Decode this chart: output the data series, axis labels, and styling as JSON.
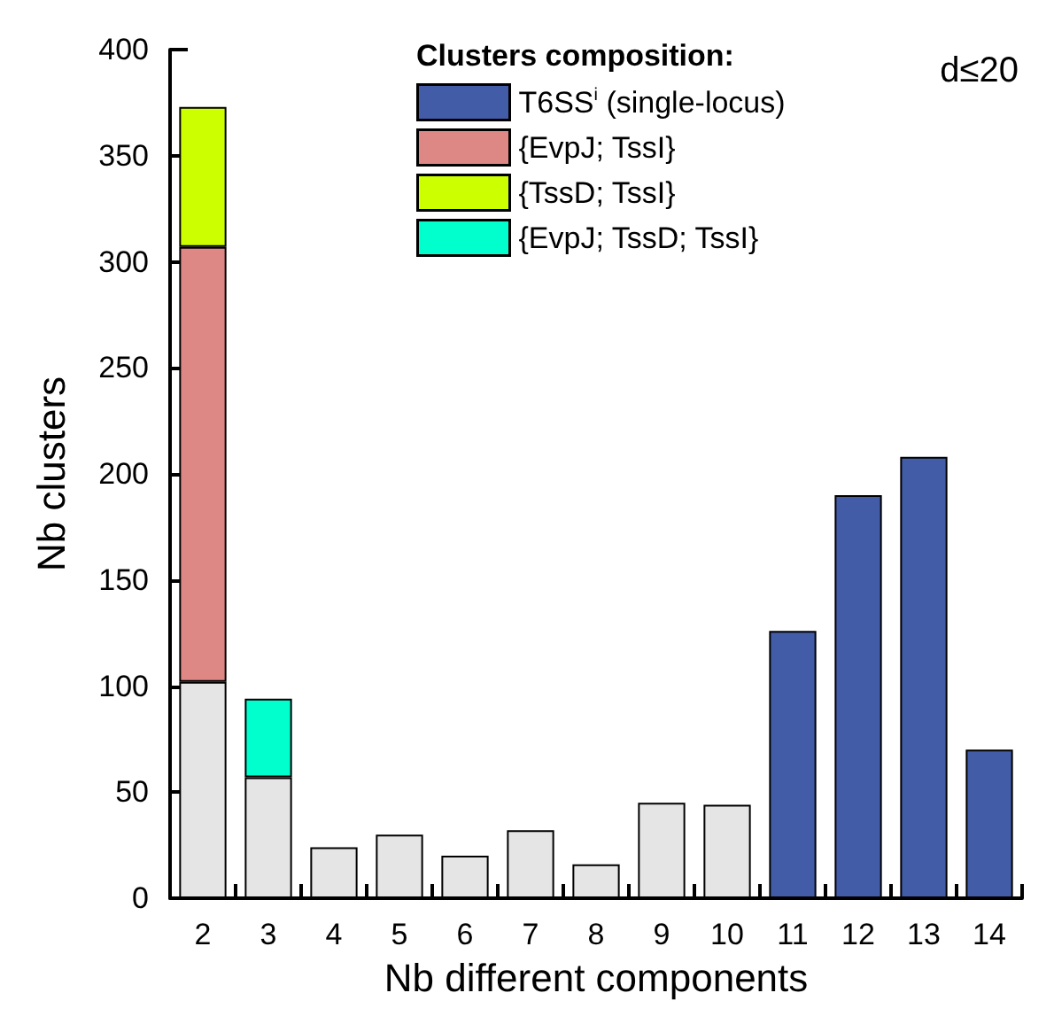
{
  "chart_data": {
    "type": "bar",
    "stacked": true,
    "xlabel": "Nb different components",
    "ylabel": "Nb clusters",
    "legend_title": "Clusters composition:",
    "annotations": [
      "d≤20"
    ],
    "categories": [
      "2",
      "3",
      "4",
      "5",
      "6",
      "7",
      "8",
      "9",
      "10",
      "11",
      "12",
      "13",
      "14"
    ],
    "series": [
      {
        "color": "#e5e5e5",
        "values": [
          102,
          57,
          24,
          30,
          20,
          32,
          16,
          45,
          44,
          null,
          null,
          null,
          null
        ]
      },
      {
        "name": "T6SS$^{i}$ (single-locus)",
        "color": "#425ca8",
        "values": [
          null,
          null,
          null,
          null,
          null,
          null,
          null,
          null,
          null,
          126,
          190,
          208,
          70
        ]
      },
      {
        "name": "{EvpJ; TssI}",
        "color": "#de8885",
        "values": [
          205,
          null,
          null,
          null,
          null,
          null,
          null,
          null,
          null,
          null,
          null,
          null,
          null
        ]
      },
      {
        "name": "{TssD; TssI}",
        "color": "#ccff00",
        "values": [
          66,
          null,
          null,
          null,
          null,
          null,
          null,
          null,
          null,
          null,
          null,
          null,
          null
        ]
      },
      {
        "name": "{EvpJ; TssD; TssI}",
        "color": "#00ffcc",
        "values": [
          null,
          37,
          null,
          null,
          null,
          null,
          null,
          null,
          null,
          null,
          null,
          null,
          null
        ]
      }
    ],
    "ylim": [
      0,
      400
    ],
    "yticks": [
      0,
      50,
      100,
      150,
      200,
      250,
      300,
      350,
      400
    ],
    "grid": false,
    "legend": "top right"
  }
}
